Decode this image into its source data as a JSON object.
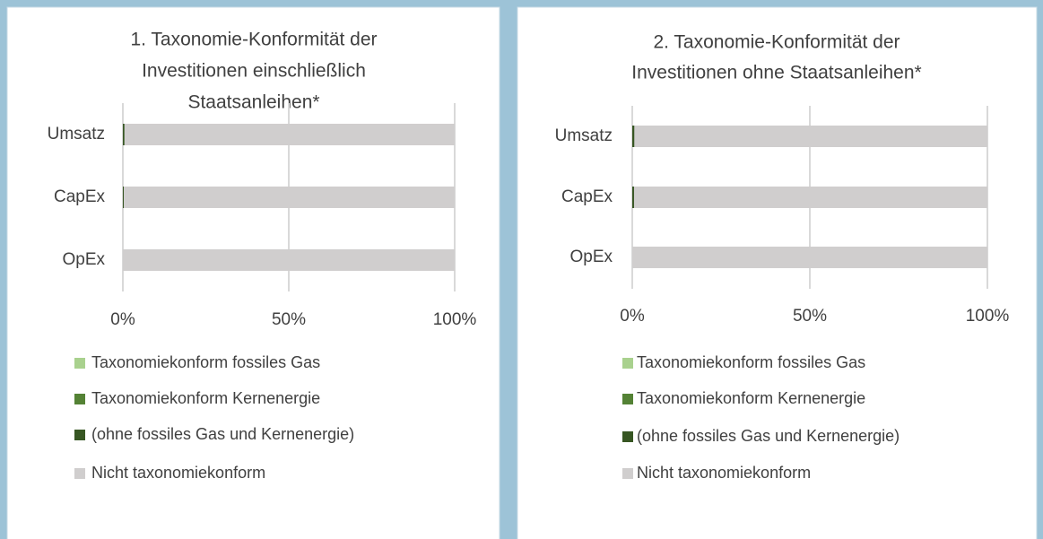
{
  "chart_data": [
    {
      "type": "stacked-bar-horizontal",
      "title": [
        "1. Taxonomie-Konformität der",
        "Investitionen einschließlich",
        "Staatsanleihen*"
      ],
      "categories": [
        "Umsatz",
        "CapEx",
        "OpEx"
      ],
      "series": [
        {
          "name": "Taxonomiekonform fossiles Gas",
          "color": "#a9d18e",
          "values": [
            0,
            0,
            0
          ]
        },
        {
          "name": "Taxonomiekonform Kernenergie",
          "color": "#548235",
          "values": [
            0,
            0,
            0
          ]
        },
        {
          "name": "(ohne fossiles Gas und Kernenergie)",
          "color": "#375623",
          "values": [
            0.5,
            0.3,
            0
          ]
        },
        {
          "name": "Nicht taxonomiekonform",
          "color": "#d0cece",
          "values": [
            99.5,
            99.7,
            100
          ]
        }
      ],
      "xlim": [
        0,
        100
      ],
      "xticks": [
        {
          "value": 0,
          "label": "0%"
        },
        {
          "value": 50,
          "label": "50%"
        },
        {
          "value": 100,
          "label": "100%"
        }
      ],
      "grid": true
    },
    {
      "type": "stacked-bar-horizontal",
      "title": [
        "2. Taxonomie-Konformität der",
        "Investitionen ohne Staatsanleihen*"
      ],
      "categories": [
        "Umsatz",
        "CapEx",
        "OpEx"
      ],
      "series": [
        {
          "name": "Taxonomiekonform fossiles Gas",
          "color": "#a9d18e",
          "values": [
            0,
            0,
            0
          ]
        },
        {
          "name": "Taxonomiekonform Kernenergie",
          "color": "#548235",
          "values": [
            0,
            0,
            0
          ]
        },
        {
          "name": "(ohne fossiles Gas und Kernenergie)",
          "color": "#375623",
          "values": [
            0.6,
            0.5,
            0
          ]
        },
        {
          "name": "Nicht taxonomiekonform",
          "color": "#d0cece",
          "values": [
            99.4,
            99.5,
            100
          ]
        }
      ],
      "xlim": [
        0,
        100
      ],
      "xticks": [
        {
          "value": 0,
          "label": "0%"
        },
        {
          "value": 50,
          "label": "50%"
        },
        {
          "value": 100,
          "label": "100%"
        }
      ],
      "grid": true
    }
  ]
}
